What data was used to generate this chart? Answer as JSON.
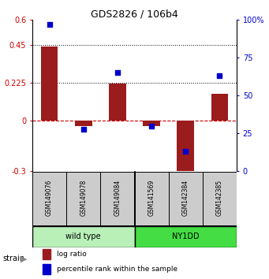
{
  "title": "GDS2826 / 106b4",
  "samples": [
    "GSM149076",
    "GSM149078",
    "GSM149084",
    "GSM141569",
    "GSM142384",
    "GSM142385"
  ],
  "log_ratios": [
    0.44,
    -0.03,
    0.22,
    -0.03,
    -0.32,
    0.16
  ],
  "percentile_ranks": [
    97,
    28,
    65,
    30,
    13,
    63
  ],
  "wildtype_color": "#c8f0c8",
  "ny1dd_color": "#44dd44",
  "bar_color": "#9b1c1c",
  "dot_color": "#0000cc",
  "ylim_left": [
    -0.3,
    0.6
  ],
  "ylim_right": [
    0,
    100
  ],
  "yticks_left": [
    -0.3,
    0,
    0.225,
    0.45,
    0.6
  ],
  "ytick_labels_left": [
    "-0.3",
    "0",
    "0.225",
    "0.45",
    "0.6"
  ],
  "yticks_right": [
    0,
    25,
    50,
    75,
    100
  ],
  "ytick_labels_right": [
    "0",
    "25",
    "50",
    "75",
    "100%"
  ],
  "hlines_dotted": [
    0.45,
    0.225
  ],
  "hline_zero_color": "#cc0000",
  "background_color": "#ffffff",
  "strain_label": "strain",
  "group_labels": [
    "wild type",
    "NY1DD"
  ],
  "legend_items": [
    {
      "label": "log ratio",
      "color": "#9b1c1c"
    },
    {
      "label": "percentile rank within the sample",
      "color": "#0000cc"
    }
  ]
}
